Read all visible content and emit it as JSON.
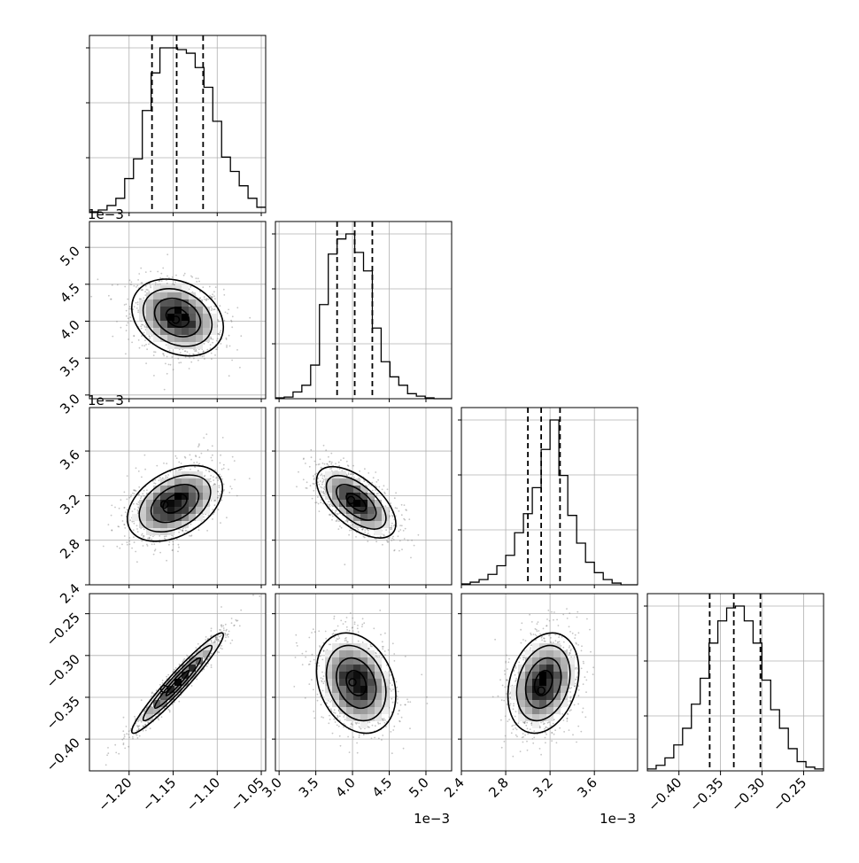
{
  "chart_data": {
    "type": "corner",
    "grid": true,
    "parameters": [
      {
        "id": "p0",
        "scale_label": "",
        "range": [
          -1.245,
          -1.045
        ],
        "ticks": [
          -1.2,
          -1.15,
          -1.1,
          -1.05
        ],
        "tick_labels": [
          "−1.20",
          "−1.15",
          "−1.10",
          "−1.05"
        ]
      },
      {
        "id": "p1",
        "scale_label": "1e−3",
        "range": [
          2.95,
          5.35
        ],
        "ticks": [
          3.0,
          3.5,
          4.0,
          4.5,
          5.0
        ],
        "tick_labels": [
          "3.0",
          "3.5",
          "4.0",
          "4.5",
          "5.0"
        ]
      },
      {
        "id": "p2",
        "scale_label": "1e−3",
        "range": [
          2.4,
          3.99
        ],
        "ticks": [
          2.4,
          2.8,
          3.2,
          3.6
        ],
        "tick_labels": [
          "2.4",
          "2.8",
          "3.2",
          "3.6"
        ]
      },
      {
        "id": "p3",
        "scale_label": "",
        "range": [
          -0.438,
          -0.226
        ],
        "ticks": [
          -0.4,
          -0.35,
          -0.3,
          -0.25
        ],
        "tick_labels": [
          "−0.40",
          "−0.35",
          "−0.30",
          "−0.25"
        ]
      }
    ],
    "histograms": [
      {
        "param": 0,
        "quantiles": [
          -1.174,
          -1.146,
          -1.116
        ],
        "bins": [
          -1.245,
          -1.235,
          -1.225,
          -1.215,
          -1.205,
          -1.195,
          -1.185,
          -1.175,
          -1.165,
          -1.155,
          -1.145,
          -1.135,
          -1.125,
          -1.115,
          -1.105,
          -1.095,
          -1.085,
          -1.075,
          -1.065,
          -1.055,
          -1.045
        ],
        "counts": [
          0.5,
          1.5,
          4,
          8,
          19,
          30,
          57,
          78,
          92,
          92,
          91,
          89,
          81,
          70,
          51,
          31,
          23,
          15,
          8,
          3
        ]
      },
      {
        "param": 1,
        "quantiles": [
          3.79,
          4.03,
          4.27
        ],
        "bins": [
          2.95,
          3.07,
          3.19,
          3.31,
          3.43,
          3.55,
          3.67,
          3.79,
          3.91,
          4.03,
          4.15,
          4.27,
          4.39,
          4.51,
          4.63,
          4.75,
          4.87,
          4.99,
          5.11,
          5.23,
          5.35
        ],
        "counts": [
          0.5,
          1,
          4,
          8,
          20,
          56,
          86,
          95,
          98,
          87,
          76,
          42,
          22,
          13,
          8,
          3,
          1.5,
          0.5,
          0,
          0
        ]
      },
      {
        "param": 2,
        "quantiles": [
          3.0,
          3.12,
          3.29
        ],
        "bins": [
          2.4,
          2.48,
          2.56,
          2.64,
          2.72,
          2.8,
          2.88,
          2.96,
          3.04,
          3.12,
          3.2,
          3.28,
          3.36,
          3.44,
          3.52,
          3.6,
          3.68,
          3.76,
          3.84,
          3.92,
          3.99
        ],
        "counts": [
          0.5,
          1.5,
          3,
          6,
          11,
          17,
          30,
          41,
          56,
          78,
          95,
          63,
          40,
          24,
          13,
          7,
          3,
          1,
          0,
          0
        ]
      },
      {
        "param": 3,
        "quantiles": [
          -0.363,
          -0.334,
          -0.302
        ],
        "bins": [
          -0.438,
          -0.4274,
          -0.4168,
          -0.4062,
          -0.3956,
          -0.385,
          -0.3744,
          -0.3638,
          -0.3532,
          -0.3426,
          -0.332,
          -0.3214,
          -0.3108,
          -0.3002,
          -0.2896,
          -0.279,
          -0.2684,
          -0.2578,
          -0.2472,
          -0.2366,
          -0.226
        ],
        "counts": [
          1,
          3,
          7,
          14,
          23,
          36,
          50,
          69,
          81,
          88,
          89,
          81,
          69,
          49,
          33,
          23,
          12,
          5,
          2,
          1
        ]
      }
    ],
    "pairs": [
      {
        "x": 0,
        "y": 1,
        "mean": [
          -1.145,
          4.05
        ],
        "sd": [
          0.026,
          0.26
        ],
        "rho": -0.25,
        "peak": [
          -1.147,
          4.02
        ]
      },
      {
        "x": 0,
        "y": 2,
        "mean": [
          -1.148,
          3.13
        ],
        "sd": [
          0.027,
          0.17
        ],
        "rho": 0.4,
        "peak": [
          -1.16,
          3.12
        ]
      },
      {
        "x": 0,
        "y": 3,
        "mean": [
          -1.145,
          -0.333
        ],
        "sd": [
          0.026,
          0.03
        ],
        "rho": 0.96,
        "peak": [
          -1.16,
          -0.34
        ]
      },
      {
        "x": 1,
        "y": 2,
        "mean": [
          4.05,
          3.14
        ],
        "sd": [
          0.27,
          0.16
        ],
        "rho": -0.6,
        "peak": [
          3.98,
          3.16
        ]
      },
      {
        "x": 1,
        "y": 3,
        "mean": [
          4.05,
          -0.333
        ],
        "sd": [
          0.27,
          0.03
        ],
        "rho": -0.25,
        "peak": [
          4.0,
          -0.332
        ]
      },
      {
        "x": 2,
        "y": 3,
        "mean": [
          3.14,
          -0.333
        ],
        "sd": [
          0.16,
          0.03
        ],
        "rho": 0.25,
        "peak": [
          3.12,
          -0.342
        ]
      }
    ],
    "contour_levels_sigma": [
      0.5,
      1.0,
      1.5,
      2.0
    ],
    "colors": {
      "line": "#000000",
      "grid": "#b0b0b0",
      "points": "#7f7f7f"
    }
  }
}
